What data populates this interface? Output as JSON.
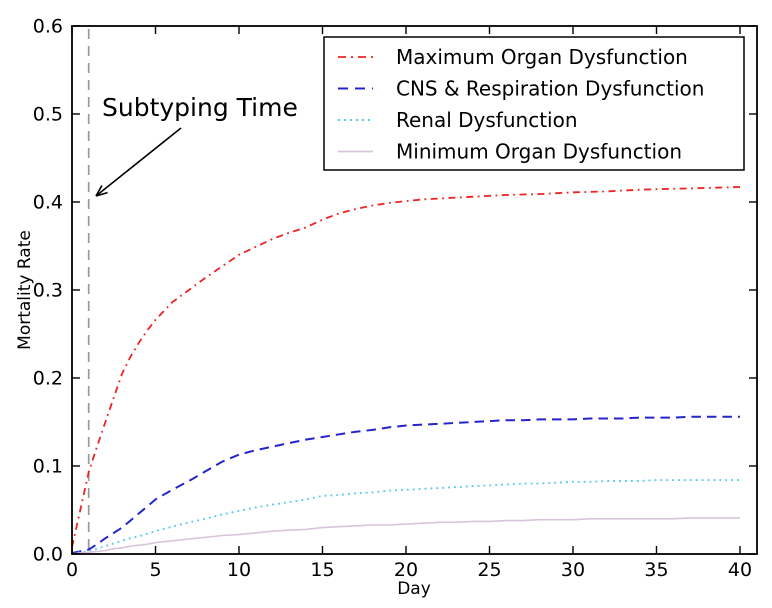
{
  "chart_data": {
    "type": "line",
    "xlabel": "Day",
    "ylabel": "Mortality Rate",
    "xlim": [
      0,
      41
    ],
    "ylim": [
      0,
      0.6
    ],
    "xticks": [
      0,
      5,
      10,
      15,
      20,
      25,
      30,
      35,
      40
    ],
    "yticks": [
      "0.0",
      "0.1",
      "0.2",
      "0.3",
      "0.4",
      "0.5",
      "0.6"
    ],
    "grid": false,
    "legend_position": "upper right",
    "annotation": {
      "text": "Subtyping Time",
      "points_to_day": 1
    },
    "subtyping_line": {
      "x": 1,
      "color": "#999999",
      "style": "dashed"
    },
    "x": [
      0,
      0.5,
      1,
      1.5,
      2,
      2.5,
      3,
      3.5,
      4,
      4.5,
      5,
      6,
      7,
      8,
      9,
      10,
      11,
      12,
      13,
      14,
      15,
      16,
      17,
      18,
      19,
      20,
      21,
      22,
      23,
      24,
      25,
      26,
      27,
      28,
      29,
      30,
      31,
      32,
      33,
      34,
      35,
      36,
      37,
      38,
      39,
      40
    ],
    "series": [
      {
        "name": "Maximum Organ Dysfunction",
        "color": "#ee2222",
        "style": "dashdot",
        "width": 1.8,
        "values": [
          0.008,
          0.05,
          0.093,
          0.122,
          0.15,
          0.178,
          0.205,
          0.224,
          0.24,
          0.254,
          0.266,
          0.286,
          0.3,
          0.314,
          0.327,
          0.34,
          0.349,
          0.358,
          0.365,
          0.371,
          0.38,
          0.387,
          0.392,
          0.396,
          0.399,
          0.401,
          0.403,
          0.404,
          0.405,
          0.406,
          0.407,
          0.408,
          0.4085,
          0.409,
          0.41,
          0.411,
          0.4115,
          0.412,
          0.413,
          0.414,
          0.4145,
          0.415,
          0.4155,
          0.416,
          0.4165,
          0.417
        ]
      },
      {
        "name": "CNS & Respiration Dysfunction",
        "color": "#2424cc",
        "style": "dashed",
        "width": 2,
        "values": [
          0.001,
          0.003,
          0.005,
          0.011,
          0.018,
          0.024,
          0.03,
          0.038,
          0.046,
          0.054,
          0.062,
          0.073,
          0.083,
          0.094,
          0.105,
          0.113,
          0.118,
          0.122,
          0.126,
          0.13,
          0.133,
          0.136,
          0.139,
          0.141,
          0.144,
          0.146,
          0.147,
          0.148,
          0.149,
          0.15,
          0.151,
          0.152,
          0.152,
          0.153,
          0.153,
          0.153,
          0.154,
          0.154,
          0.154,
          0.155,
          0.155,
          0.155,
          0.156,
          0.156,
          0.156,
          0.156
        ]
      },
      {
        "name": "Renal Dysfunction",
        "color": "#5ecbec",
        "style": "dotted",
        "width": 1.9,
        "values": [
          0,
          0.002,
          0.003,
          0.006,
          0.009,
          0.012,
          0.015,
          0.018,
          0.02,
          0.023,
          0.026,
          0.031,
          0.036,
          0.04,
          0.045,
          0.049,
          0.053,
          0.056,
          0.059,
          0.062,
          0.066,
          0.067,
          0.069,
          0.07,
          0.072,
          0.073,
          0.074,
          0.075,
          0.076,
          0.077,
          0.078,
          0.079,
          0.08,
          0.08,
          0.081,
          0.082,
          0.082,
          0.083,
          0.083,
          0.083,
          0.084,
          0.084,
          0.084,
          0.084,
          0.084,
          0.084
        ]
      },
      {
        "name": "Minimum Organ Dysfunction",
        "color": "#d9c4d9",
        "style": "solid",
        "width": 1.6,
        "values": [
          0,
          0.001,
          0.002,
          0.003,
          0.004,
          0.006,
          0.007,
          0.009,
          0.01,
          0.011,
          0.013,
          0.015,
          0.017,
          0.019,
          0.021,
          0.022,
          0.024,
          0.026,
          0.027,
          0.028,
          0.03,
          0.031,
          0.032,
          0.033,
          0.033,
          0.034,
          0.035,
          0.036,
          0.036,
          0.037,
          0.037,
          0.038,
          0.038,
          0.039,
          0.039,
          0.039,
          0.04,
          0.04,
          0.04,
          0.04,
          0.04,
          0.04,
          0.041,
          0.041,
          0.041,
          0.041
        ]
      }
    ]
  }
}
